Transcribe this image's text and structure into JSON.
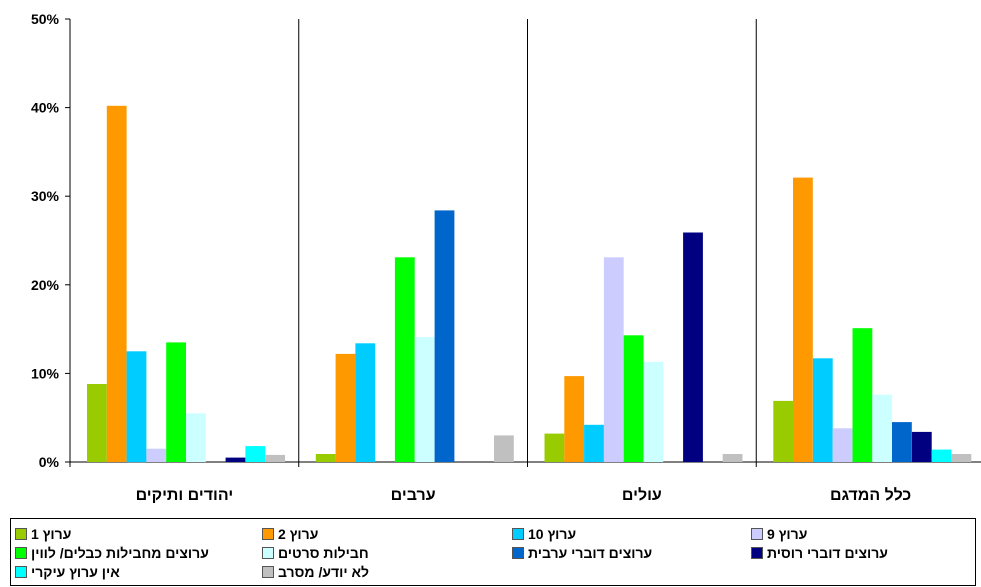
{
  "chart_data": {
    "type": "bar",
    "categories": [
      "יהודים ותיקים",
      "ערבים",
      "עולים",
      "כלל המדגם"
    ],
    "y_ticks": [
      "0%",
      "10%",
      "20%",
      "30%",
      "40%",
      "50%"
    ],
    "ylim": [
      0,
      50
    ],
    "y_unit": "%",
    "grid": false,
    "legend_position": "bottom",
    "series": [
      {
        "name": "ערוץ 1",
        "color": "#99cc00",
        "values": [
          8.8,
          0.9,
          3.2,
          6.9
        ]
      },
      {
        "name": "ערוץ 2",
        "color": "#ff9900",
        "values": [
          40.2,
          12.2,
          9.7,
          32.1
        ]
      },
      {
        "name": "ערוץ 10",
        "color": "#00ccff",
        "values": [
          12.5,
          13.4,
          4.2,
          11.7
        ]
      },
      {
        "name": "ערוץ 9",
        "color": "#ccccff",
        "values": [
          1.5,
          0,
          23.1,
          3.8
        ]
      },
      {
        "name": "ערוצים מחבילות כבלים/ לווין",
        "color": "#00ff00",
        "values": [
          13.5,
          23.1,
          14.3,
          15.1
        ]
      },
      {
        "name": "חבילות סרטים",
        "color": "#ccffff",
        "values": [
          5.5,
          14.1,
          11.3,
          7.6
        ]
      },
      {
        "name": "ערוצים דוברי ערבית",
        "color": "#0066cc",
        "values": [
          0,
          28.4,
          0,
          4.5
        ]
      },
      {
        "name": "ערוצים דוברי רוסית",
        "color": "#000080",
        "values": [
          0.5,
          0,
          25.9,
          3.4
        ]
      },
      {
        "name": "אין ערוץ עיקרי",
        "color": "#00ffff",
        "values": [
          1.8,
          0,
          0,
          1.4
        ]
      },
      {
        "name": "לא יודע/ מסרב",
        "color": "#c0c0c0",
        "values": [
          0.8,
          3.0,
          0.9,
          0.9
        ]
      }
    ]
  }
}
